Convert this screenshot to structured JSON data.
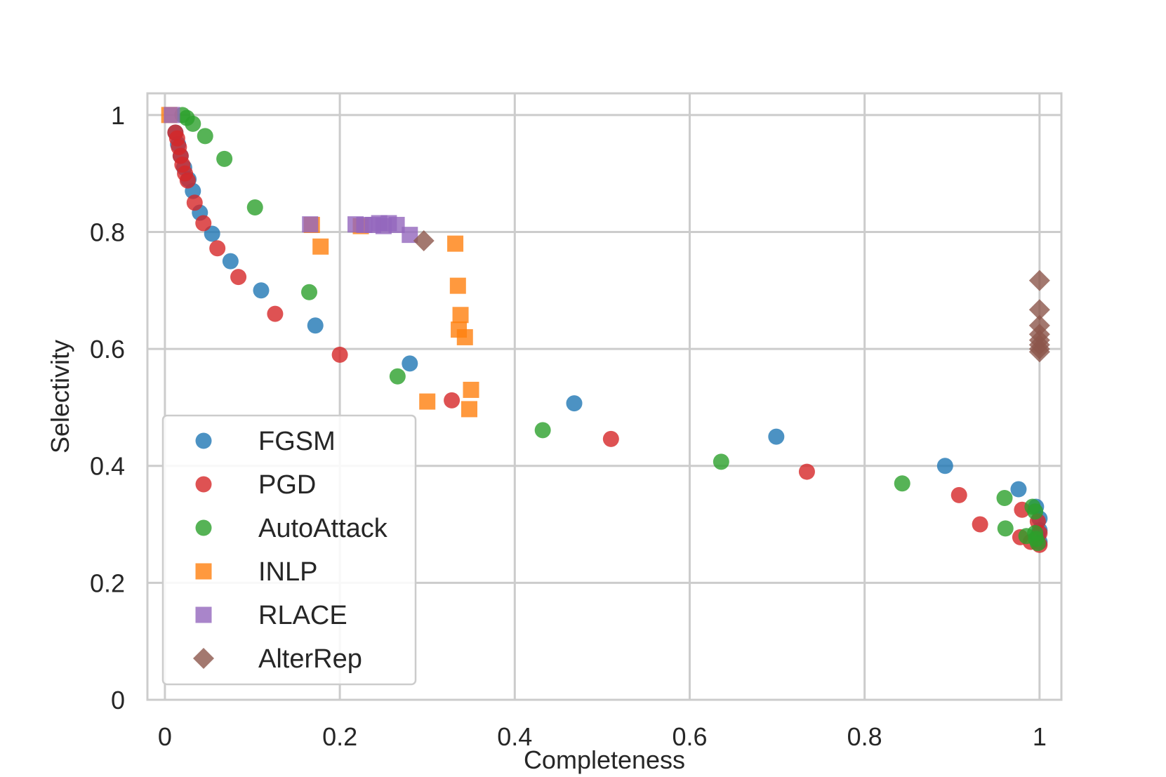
{
  "chart_data": {
    "type": "scatter",
    "title": "",
    "xlabel": "Completeness",
    "ylabel": "Selectivity",
    "xlim": [
      -0.02,
      1.025
    ],
    "ylim": [
      0,
      1.037
    ],
    "xticks": [
      0,
      0.2,
      0.4,
      0.6,
      0.8,
      1
    ],
    "xtick_labels": [
      "0",
      "0.2",
      "0.4",
      "0.6",
      "0.8",
      "1"
    ],
    "yticks": [
      0,
      0.2,
      0.4,
      0.6,
      0.8,
      1
    ],
    "ytick_labels": [
      "0",
      "0.2",
      "0.4",
      "0.6",
      "0.8",
      "1"
    ],
    "grid": true,
    "legend_position": "lower-left",
    "series": [
      {
        "name": "FGSM",
        "marker": "circle",
        "color": "#1f77b4",
        "points": [
          [
            0.012,
            0.97
          ],
          [
            0.015,
            0.95
          ],
          [
            0.018,
            0.93
          ],
          [
            0.022,
            0.91
          ],
          [
            0.027,
            0.89
          ],
          [
            0.032,
            0.87
          ],
          [
            0.04,
            0.833
          ],
          [
            0.054,
            0.797
          ],
          [
            0.075,
            0.75
          ],
          [
            0.11,
            0.7
          ],
          [
            0.172,
            0.64
          ],
          [
            0.28,
            0.575
          ],
          [
            0.468,
            0.507
          ],
          [
            0.699,
            0.45
          ],
          [
            0.892,
            0.4
          ],
          [
            0.976,
            0.36
          ],
          [
            0.996,
            0.33
          ],
          [
            1.0,
            0.31
          ],
          [
            1.0,
            0.29
          ],
          [
            0.998,
            0.28
          ],
          [
            1.0,
            0.27
          ]
        ]
      },
      {
        "name": "PGD",
        "marker": "circle",
        "color": "#d62728",
        "points": [
          [
            0.012,
            0.97
          ],
          [
            0.014,
            0.96
          ],
          [
            0.016,
            0.945
          ],
          [
            0.018,
            0.93
          ],
          [
            0.02,
            0.915
          ],
          [
            0.023,
            0.9
          ],
          [
            0.026,
            0.888
          ],
          [
            0.034,
            0.85
          ],
          [
            0.044,
            0.815
          ],
          [
            0.06,
            0.772
          ],
          [
            0.084,
            0.723
          ],
          [
            0.126,
            0.66
          ],
          [
            0.2,
            0.59
          ],
          [
            0.328,
            0.512
          ],
          [
            0.51,
            0.446
          ],
          [
            0.734,
            0.39
          ],
          [
            0.908,
            0.35
          ],
          [
            0.932,
            0.3
          ],
          [
            0.98,
            0.325
          ],
          [
            0.978,
            0.278
          ],
          [
            0.998,
            0.305
          ],
          [
            1.0,
            0.285
          ],
          [
            1.0,
            0.265
          ],
          [
            0.99,
            0.27
          ]
        ]
      },
      {
        "name": "AutoAttack",
        "marker": "circle",
        "color": "#2ca02c",
        "points": [
          [
            0.02,
            1.0
          ],
          [
            0.025,
            0.995
          ],
          [
            0.032,
            0.985
          ],
          [
            0.046,
            0.964
          ],
          [
            0.068,
            0.925
          ],
          [
            0.103,
            0.842
          ],
          [
            0.165,
            0.697
          ],
          [
            0.266,
            0.553
          ],
          [
            0.432,
            0.461
          ],
          [
            0.636,
            0.407
          ],
          [
            0.843,
            0.37
          ],
          [
            0.96,
            0.345
          ],
          [
            0.961,
            0.293
          ],
          [
            0.992,
            0.33
          ],
          [
            0.995,
            0.322
          ],
          [
            0.985,
            0.28
          ],
          [
            0.996,
            0.275
          ],
          [
            0.998,
            0.268
          ],
          [
            0.995,
            0.285
          ]
        ]
      },
      {
        "name": "INLP",
        "marker": "square",
        "color": "#ff7f0e",
        "points": [
          [
            0.005,
            1.0
          ],
          [
            0.168,
            0.812
          ],
          [
            0.178,
            0.775
          ],
          [
            0.224,
            0.81
          ],
          [
            0.332,
            0.78
          ],
          [
            0.335,
            0.708
          ],
          [
            0.338,
            0.658
          ],
          [
            0.336,
            0.633
          ],
          [
            0.343,
            0.62
          ],
          [
            0.35,
            0.53
          ],
          [
            0.3,
            0.51
          ],
          [
            0.348,
            0.497
          ]
        ]
      },
      {
        "name": "RLACE",
        "marker": "square",
        "color": "#9467bd",
        "points": [
          [
            0.008,
            1.0
          ],
          [
            0.166,
            0.813
          ],
          [
            0.218,
            0.813
          ],
          [
            0.228,
            0.812
          ],
          [
            0.238,
            0.812
          ],
          [
            0.245,
            0.815
          ],
          [
            0.25,
            0.81
          ],
          [
            0.256,
            0.815
          ],
          [
            0.265,
            0.812
          ],
          [
            0.28,
            0.795
          ]
        ]
      },
      {
        "name": "AlterRep",
        "marker": "diamond",
        "color": "#8c564b",
        "points": [
          [
            0.296,
            0.785
          ],
          [
            1.0,
            0.717
          ],
          [
            1.0,
            0.667
          ],
          [
            1.0,
            0.64
          ],
          [
            1.0,
            0.625
          ],
          [
            1.0,
            0.615
          ],
          [
            1.0,
            0.607
          ],
          [
            1.0,
            0.6
          ],
          [
            1.0,
            0.595
          ]
        ]
      }
    ]
  }
}
